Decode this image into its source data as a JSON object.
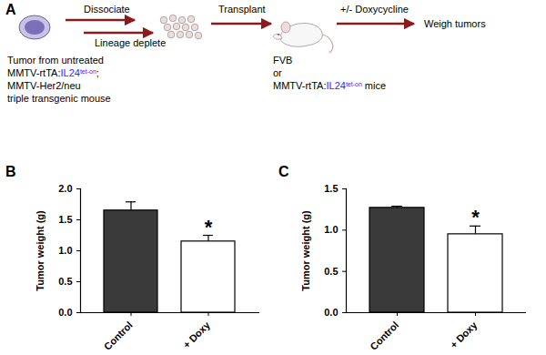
{
  "diagram": {
    "panel_label": "A",
    "arrow_labels": {
      "dissociate": "Dissociate",
      "deplete": "Lineage deplete",
      "transplant": "Transplant",
      "treat": "+/- Doxycycline"
    },
    "end_label": "Weigh tumors",
    "source_lines": [
      [
        {
          "text": "Tumor from untreated"
        }
      ],
      [
        {
          "text": "MMTV-rtTA:"
        },
        {
          "text": "IL24",
          "color": "#2b2bff"
        },
        {
          "text": "tet-on",
          "color": "#2b2bff",
          "sup": true
        },
        {
          "text": ";"
        }
      ],
      [
        {
          "text": "MMTV-Her2/neu"
        }
      ],
      [
        {
          "text": "triple transgenic mouse"
        }
      ]
    ],
    "host_lines": [
      [
        {
          "text": "FVB"
        }
      ],
      [
        {
          "text": "or"
        }
      ],
      [
        {
          "text": "MMTV-rtTA:"
        },
        {
          "text": "IL24",
          "color": "#2b2bff"
        },
        {
          "text": "tet-on",
          "color": "#2b2bff",
          "sup": true
        },
        {
          "text": " mice"
        }
      ]
    ]
  },
  "chart_data": [
    {
      "type": "bar",
      "panel_label": "B",
      "categories": [
        "Control",
        "+ Doxy"
      ],
      "values": [
        1.65,
        1.15
      ],
      "errors": [
        0.14,
        0.1
      ],
      "colors": [
        "#3a3a3a",
        "#ffffff"
      ],
      "ylim": [
        0,
        2
      ],
      "yticks": [
        {
          "value": 0,
          "label": "0.0"
        },
        {
          "value": 0.5,
          "label": "0.5"
        },
        {
          "value": 1,
          "label": "1.0"
        },
        {
          "value": 1.5,
          "label": "1.5"
        },
        {
          "value": 2,
          "label": "2.0"
        }
      ],
      "y_label": "Tumor weight (g)",
      "annotations": [
        {
          "category": "+ Doxy",
          "text": "*"
        }
      ]
    },
    {
      "type": "bar",
      "panel_label": "C",
      "categories": [
        "Control",
        "+ Doxy"
      ],
      "values": [
        1.27,
        0.95
      ],
      "errors": [
        0.02,
        0.1
      ],
      "colors": [
        "#3a3a3a",
        "#ffffff"
      ],
      "ylim": [
        0,
        1.5
      ],
      "yticks": [
        {
          "value": 0,
          "label": "0.0"
        },
        {
          "value": 0.5,
          "label": "0.5"
        },
        {
          "value": 1,
          "label": "1.0"
        },
        {
          "value": 1.5,
          "label": "1.5"
        }
      ],
      "y_label": "Tumor weight (g)",
      "annotations": [
        {
          "category": "+ Doxy",
          "text": "*"
        }
      ]
    }
  ]
}
